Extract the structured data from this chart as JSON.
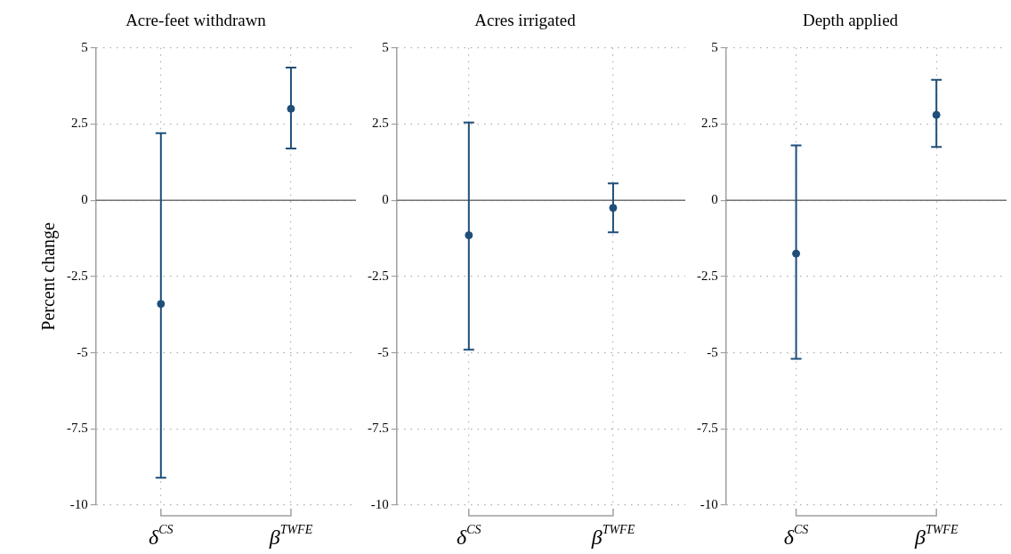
{
  "chart_data": [
    {
      "type": "scatter",
      "title": "Acre-feet withdrawn",
      "ylabel": "Percent change",
      "categories": [
        "δ$^{CS}$",
        "β$^{TWFE}$"
      ],
      "series": [
        {
          "color": "#1f4e79",
          "values": [
            -3.4,
            3.0
          ],
          "errors": [
            [
              -9.1,
              2.2
            ],
            [
              1.7,
              4.35
            ]
          ]
        }
      ],
      "ylim": [
        -10,
        5
      ],
      "yticks": [
        -10,
        -7.5,
        -5,
        -2.5,
        0,
        2.5,
        5
      ],
      "grid": true,
      "marker": "circle",
      "ref_lines": [
        {
          "axis": "y",
          "value": 0,
          "color": "#707070"
        }
      ]
    },
    {
      "type": "scatter",
      "title": "Acres irrigated",
      "categories": [
        "δ$^{CS}$",
        "β$^{TWFE}$"
      ],
      "series": [
        {
          "color": "#1f4e79",
          "values": [
            -1.15,
            -0.25
          ],
          "errors": [
            [
              -4.9,
              2.55
            ],
            [
              -1.05,
              0.55
            ]
          ]
        }
      ],
      "ylim": [
        -10,
        5
      ],
      "yticks": [
        -10,
        -7.5,
        -5,
        -2.5,
        0,
        2.5,
        5
      ],
      "grid": true,
      "marker": "circle",
      "ref_lines": [
        {
          "axis": "y",
          "value": 0,
          "color": "#707070"
        }
      ]
    },
    {
      "type": "scatter",
      "title": "Depth applied",
      "categories": [
        "δ$^{CS}$",
        "β$^{TWFE}$"
      ],
      "series": [
        {
          "color": "#1f4e79",
          "values": [
            -1.75,
            2.8
          ],
          "errors": [
            [
              -5.2,
              1.8
            ],
            [
              1.75,
              3.95
            ]
          ]
        }
      ],
      "ylim": [
        -10,
        5
      ],
      "yticks": [
        -10,
        -7.5,
        -5,
        -2.5,
        0,
        2.5,
        5
      ],
      "grid": true,
      "marker": "circle",
      "ref_lines": [
        {
          "axis": "y",
          "value": 0,
          "color": "#707070"
        }
      ]
    }
  ]
}
